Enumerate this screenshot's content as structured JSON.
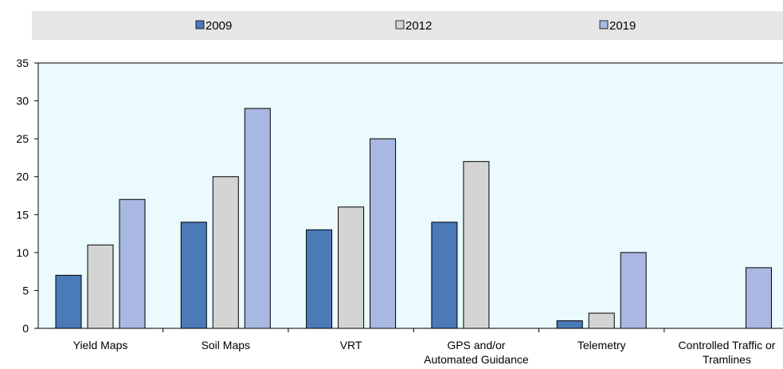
{
  "chart_data": {
    "type": "bar",
    "title": "",
    "xlabel": "",
    "ylabel": "",
    "ylim": [
      0,
      35
    ],
    "yticks": [
      0,
      5,
      10,
      15,
      20,
      25,
      30,
      35
    ],
    "grid": false,
    "legend_position": "top",
    "categories": [
      [
        "Yield Maps"
      ],
      [
        "Soil Maps"
      ],
      [
        "VRT"
      ],
      [
        "GPS and/or",
        "Automated Guidance"
      ],
      [
        "Telemetry"
      ],
      [
        "Controlled Traffic or",
        "Tramlines"
      ]
    ],
    "series": [
      {
        "name": "2009",
        "color": "#4a7ab8",
        "values": [
          7,
          14,
          13,
          14,
          1,
          null
        ]
      },
      {
        "name": "2012",
        "color": "#d4d4d4",
        "values": [
          11,
          20,
          16,
          22,
          2,
          null
        ]
      },
      {
        "name": "2019",
        "color": "#a9b8e2",
        "values": [
          17,
          29,
          25,
          null,
          10,
          8
        ]
      }
    ],
    "colors": {
      "plot_background": "#eafafd",
      "legend_background": "#e6e6e6",
      "bar_stroke": "#000000"
    }
  }
}
